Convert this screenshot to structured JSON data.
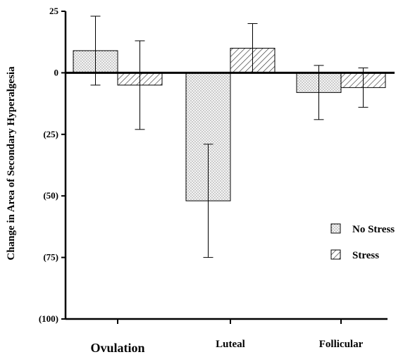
{
  "chart_data": {
    "type": "bar",
    "ylabel": "Change in Area of Secondary Hyperalgesia",
    "xlabel": "",
    "categories": [
      "Ovulation",
      "Luteal",
      "Follicular"
    ],
    "series": [
      {
        "name": "No Stress",
        "pattern": "dots",
        "values": [
          9,
          -52,
          -8
        ],
        "error": [
          14,
          23,
          11
        ]
      },
      {
        "name": "Stress",
        "pattern": "hatch",
        "values": [
          -5,
          10,
          -6
        ],
        "error": [
          18,
          10,
          8
        ]
      }
    ],
    "ylim": [
      -100,
      25
    ],
    "yticks": [
      25,
      0,
      -25,
      -50,
      -75,
      -100
    ],
    "ytick_labels": [
      "25",
      "0",
      "(25)",
      "(50)",
      "(75)",
      "(100)"
    ],
    "legend_position": "right",
    "grid": false
  }
}
